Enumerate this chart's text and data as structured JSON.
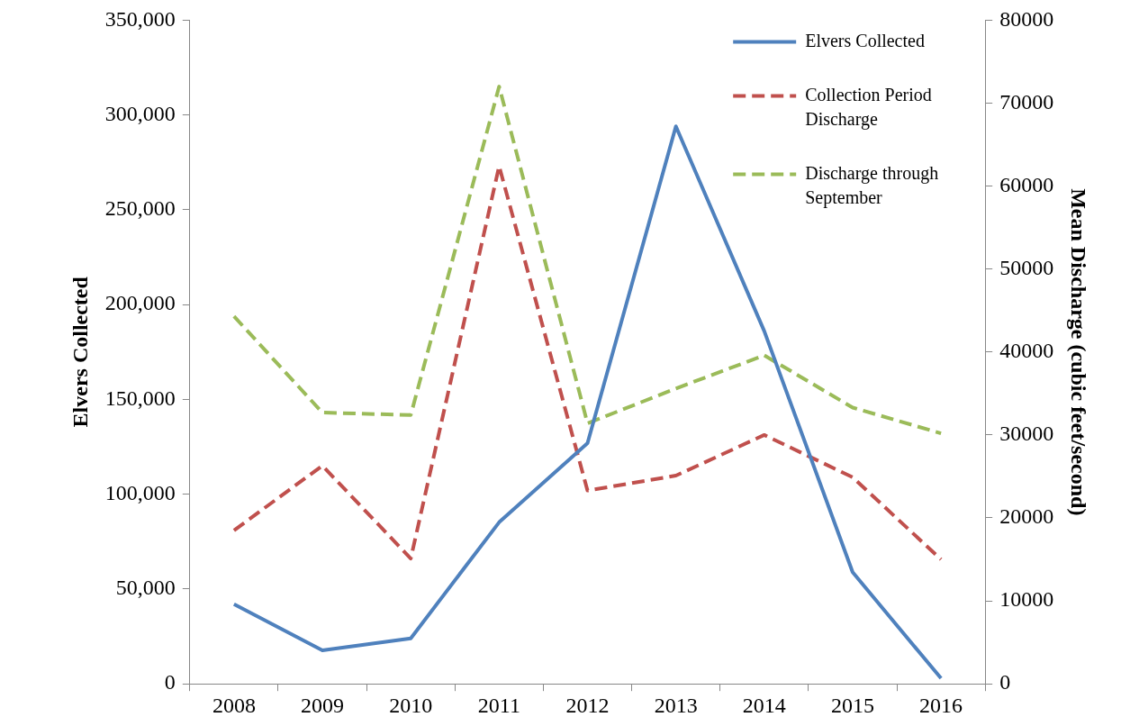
{
  "chart_data": {
    "type": "line",
    "ylabel": "Elvers Collected",
    "y2label": "Mean Discharge (cubic feet/second)",
    "categories": [
      "2008",
      "2009",
      "2010",
      "2011",
      "2012",
      "2013",
      "2014",
      "2015",
      "2016"
    ],
    "series": [
      {
        "name": "Elvers Collected",
        "color": "#4f81bd",
        "line_style": "solid",
        "values": [
          42000,
          17700,
          24000,
          85200,
          126900,
          294000,
          186000,
          58900,
          2900
        ]
      },
      {
        "name": "Collection Period Discharge",
        "color": "#c0504d",
        "line_style": "dashed",
        "axis": "y2",
        "values": [
          18500,
          26300,
          15100,
          62400,
          23300,
          25100,
          30000,
          24900,
          15000
        ]
      },
      {
        "name": "Discharge through September",
        "color": "#9bbb59",
        "line_style": "dashed",
        "axis": "y2",
        "values": [
          44300,
          32700,
          32400,
          72000,
          31400,
          35600,
          39600,
          33300,
          30200
        ]
      }
    ],
    "ylim": [
      0,
      350000
    ],
    "yticks": [
      0,
      {
        "value": 50000,
        "label": "50,000"
      },
      {
        "value": 100000,
        "label": "100,000"
      },
      {
        "value": 150000,
        "label": "150,000"
      },
      {
        "value": 200000,
        "label": "200,000"
      },
      {
        "value": 250000,
        "label": "250,000"
      },
      {
        "value": 300000,
        "label": "300,000"
      },
      {
        "value": 350000,
        "label": "350,000"
      }
    ],
    "y2lim": [
      0,
      80000
    ],
    "y2ticks": [
      0,
      10000,
      20000,
      30000,
      40000,
      50000,
      60000,
      70000,
      80000
    ],
    "grid": false,
    "legend": "top right",
    "marker": "none"
  }
}
